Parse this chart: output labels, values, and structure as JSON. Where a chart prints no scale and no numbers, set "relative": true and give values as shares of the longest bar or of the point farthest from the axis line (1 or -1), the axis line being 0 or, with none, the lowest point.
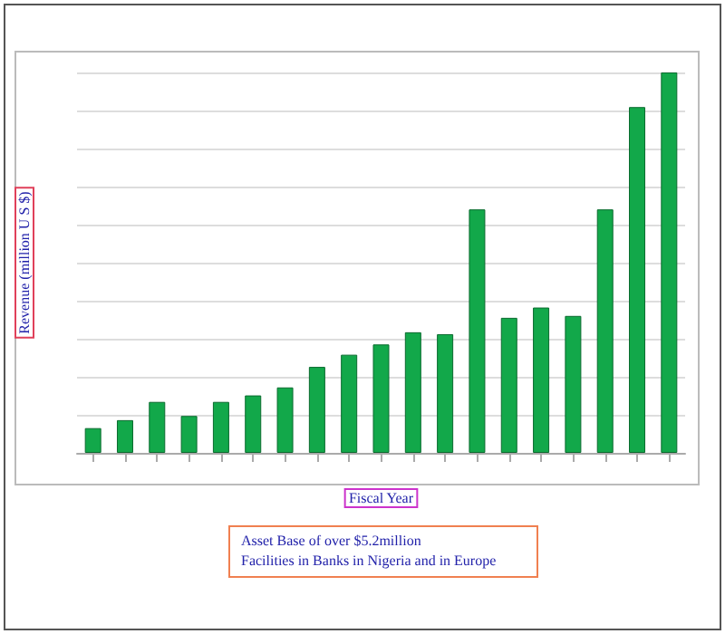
{
  "chart_data": {
    "type": "bar",
    "relative": true,
    "xlabel": "Fiscal Year",
    "ylabel": "Revenue (million U S $)",
    "categories": [
      null,
      null,
      null,
      null,
      null,
      null,
      null,
      null,
      null,
      null,
      null,
      null,
      null,
      null,
      null,
      null,
      null,
      null,
      null
    ],
    "values": [
      0.065,
      0.086,
      0.134,
      0.097,
      0.134,
      0.151,
      0.172,
      0.226,
      0.258,
      0.285,
      0.317,
      0.312,
      0.64,
      0.355,
      0.382,
      0.36,
      0.64,
      0.909,
      1
    ],
    "color": "#12a84a",
    "grid": "y",
    "annotations": [
      "Asset Base of over $5.2million",
      "Facilities in Banks in Nigeria and in Europe"
    ]
  }
}
